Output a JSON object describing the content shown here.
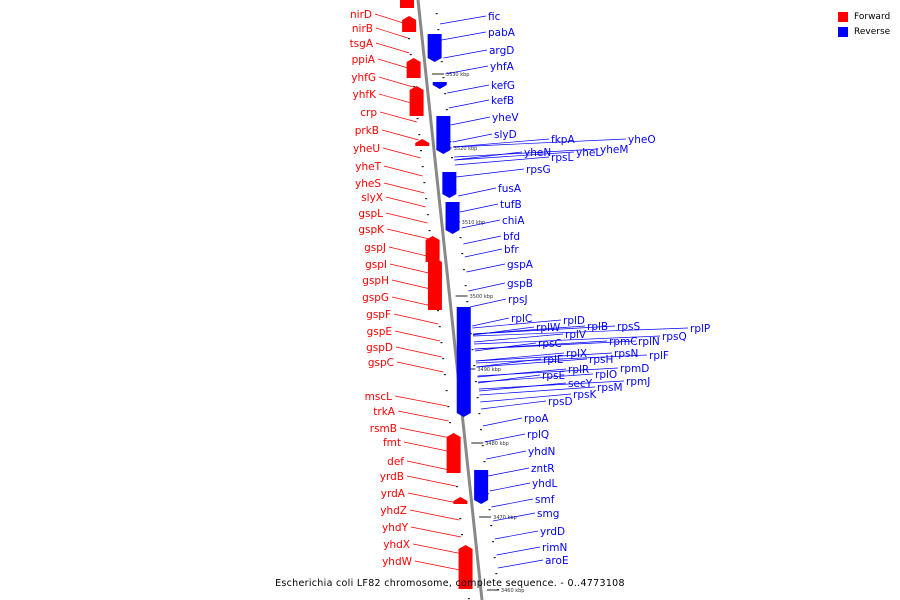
{
  "caption": "Escherichia coli LF82 chromosome, complete sequence. - 0..4773108",
  "legend": [
    {
      "label": "Forward",
      "color": "#ff0000"
    },
    {
      "label": "Reverse",
      "color": "#0000ff"
    }
  ],
  "colors": {
    "forward": "#ff0000",
    "reverse": "#0000ff",
    "axis": "#888888"
  },
  "kbp_labels": [
    "3530 kbp",
    "3520 kbp",
    "3510 kbp",
    "3500 kbp",
    "3490 kbp",
    "3480 kbp",
    "3470 kbp",
    "3460 kbp"
  ],
  "forward_genes": [
    "nirD",
    "nirB",
    "tsgA",
    "ppiA",
    "yhfG",
    "yhfK",
    "crp",
    "prkB",
    "yheU",
    "yheT",
    "yheS",
    "slyX",
    "gspL",
    "gspK",
    "gspJ",
    "gspI",
    "gspH",
    "gspG",
    "gspF",
    "gspE",
    "gspD",
    "gspC",
    "mscL",
    "trkA",
    "rsmB",
    "fmt",
    "def",
    "yrdB",
    "yrdA",
    "yhdZ",
    "yhdY",
    "yhdX",
    "yhdW"
  ],
  "reverse_genes": [
    "fic",
    "pabA",
    "argD",
    "yhfA",
    "kefG",
    "kefB",
    "yheV",
    "slyD",
    "fkpA",
    "yheO",
    "yheN",
    "yheM",
    "yheL",
    "rpsL",
    "rpsG",
    "fusA",
    "tufB",
    "chiA",
    "bfd",
    "bfr",
    "gspA",
    "gspB",
    "rpsJ",
    "rplC",
    "rplD",
    "rplW",
    "rplB",
    "rpsS",
    "rplV",
    "rplP",
    "rpsQ",
    "rpsC",
    "rpmC",
    "rplN",
    "rplX",
    "rplE",
    "rpsN",
    "rplF",
    "rpsH",
    "rplR",
    "rpmD",
    "rpsE",
    "rplO",
    "secY",
    "rpmJ",
    "rpsM",
    "rpsK",
    "rpsD",
    "rpoA",
    "rplQ",
    "yhdN",
    "zntR",
    "yhdL",
    "smf",
    "smg",
    "yrdD",
    "rimN",
    "aroE"
  ]
}
